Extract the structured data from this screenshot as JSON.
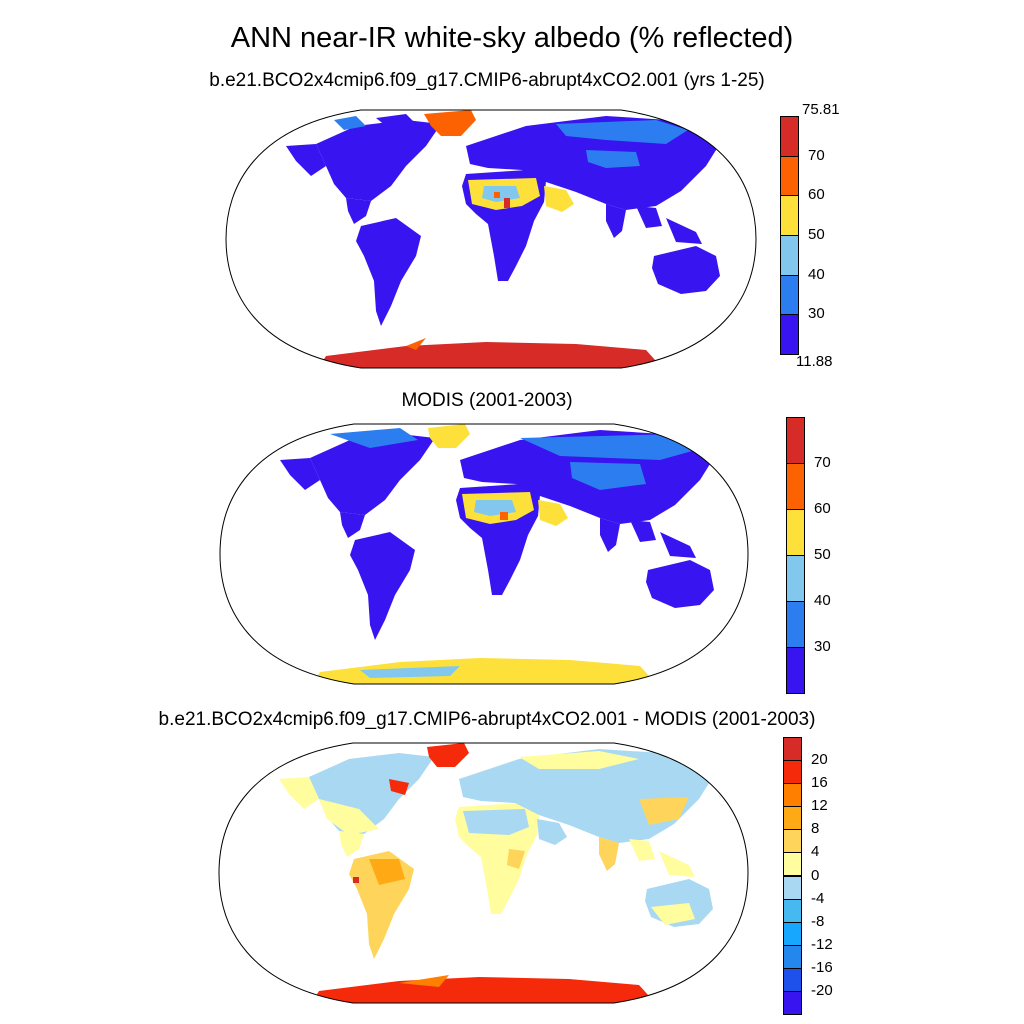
{
  "figure": {
    "title": "ANN near-IR white-sky albedo (% reflected)"
  },
  "panels": [
    {
      "title": "b.e21.BCO2x4cmip6.f09_g17.CMIP6-abrupt4xCO2.001 (yrs 1-25)",
      "colorbar": {
        "colors": [
          "#3714f0",
          "#2c7ef0",
          "#82c8ee",
          "#fde03a",
          "#fd6202",
          "#d62b27"
        ],
        "labels": [
          "11.88",
          "30",
          "40",
          "50",
          "60",
          "70",
          "75.81"
        ]
      }
    },
    {
      "title": "MODIS (2001-2003)",
      "colorbar": {
        "colors": [
          "#3714f0",
          "#2c7ef0",
          "#82c8ee",
          "#fde03a",
          "#fd6202",
          "#d62b27"
        ],
        "labels": [
          "30",
          "40",
          "50",
          "60",
          "70"
        ]
      }
    },
    {
      "title": "b.e21.BCO2x4cmip6.f09_g17.CMIP6-abrupt4xCO2.001 - MODIS (2001-2003)",
      "colorbar": {
        "colors": [
          "#3714f0",
          "#1e50eb",
          "#2487ee",
          "#17a7ff",
          "#46b9f0",
          "#a9d8f2",
          "#fffd9e",
          "#fed45a",
          "#ffaa14",
          "#ff7f00",
          "#f42a0a",
          "#d62b27"
        ],
        "labels": [
          "-20",
          "-16",
          "-12",
          "-8",
          "-4",
          "0",
          "4",
          "8",
          "12",
          "16",
          "20"
        ]
      }
    }
  ]
}
